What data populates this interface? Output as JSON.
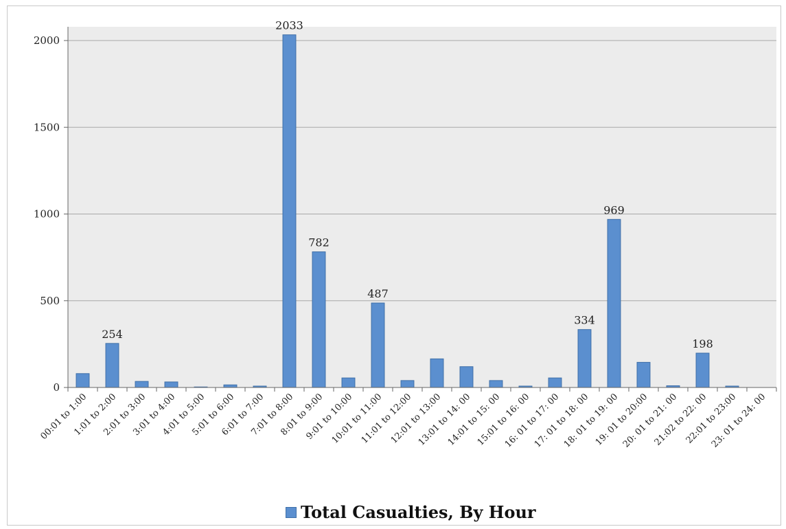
{
  "chart_data": {
    "type": "bar",
    "categories": [
      "00:01 to 1:00",
      "1:01 to 2:00",
      "2:01 to 3:00",
      "3:01 to 4:00",
      "4:01 to 5:00",
      "5:01 to 6:00",
      "6:01 to 7:00",
      "7:01 to 8:00",
      "8:01 to 9:00",
      "9:01 to 10:00",
      "10:01 to 11:00",
      "11:01 to 12:00",
      "12:01 to 13:00",
      "13:01 to 14: 00",
      "14:01 to 15: 00",
      "15:01 to 16: 00",
      "16: 01 to 17: 00",
      "17: 01 to 18: 00",
      "18: 01 to 19: 00",
      "19: 01 to 20:00",
      "20: 01 to 21: 00",
      "21:02 to 22: 00",
      "22:01 to 23:00",
      "23: 01 to 24: 00"
    ],
    "series": [
      {
        "name": "Total Casualties, By Hour",
        "values": [
          80,
          254,
          35,
          32,
          3,
          15,
          8,
          2033,
          782,
          55,
          487,
          40,
          165,
          120,
          40,
          8,
          55,
          334,
          969,
          145,
          10,
          198,
          8,
          0
        ],
        "color": "#5b8fcf"
      }
    ],
    "data_labels": {
      "1": "254",
      "7": "2033",
      "8": "782",
      "10": "487",
      "17": "334",
      "18": "969",
      "21": "198"
    },
    "yticks": [
      "0",
      "500",
      "1000",
      "1500",
      "2000"
    ],
    "ylim": [
      0,
      2000
    ],
    "grid": true,
    "legend_position": "bottom"
  }
}
